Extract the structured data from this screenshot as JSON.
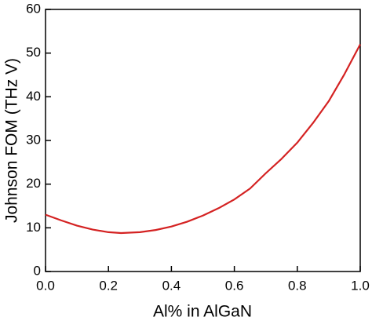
{
  "chart_data": {
    "type": "line",
    "x_label": "Al% in AlGaN",
    "y_label": "Johnson FOM (THz V)",
    "x": [
      0,
      0.05,
      0.1,
      0.15,
      0.2,
      0.24,
      0.3,
      0.35,
      0.4,
      0.45,
      0.5,
      0.55,
      0.6,
      0.65,
      0.7,
      0.75,
      0.8,
      0.85,
      0.9,
      0.95,
      1.0
    ],
    "series": [
      {
        "color": "#d42222",
        "values": [
          13,
          11.7,
          10.5,
          9.6,
          9.0,
          8.8,
          9.0,
          9.5,
          10.3,
          11.4,
          12.8,
          14.5,
          16.5,
          19,
          22.5,
          25.8,
          29.5,
          34,
          39,
          45.2,
          52
        ]
      }
    ],
    "xlim": [
      0,
      1.0
    ],
    "xticks": [
      {
        "value": 0,
        "label": "0.0"
      },
      0.2,
      0.4,
      0.6,
      0.8,
      {
        "value": 1.0,
        "label": "1.0"
      }
    ],
    "ylim": [
      0,
      60
    ],
    "yticks": [
      0,
      10,
      20,
      30,
      40,
      50,
      60
    ]
  }
}
